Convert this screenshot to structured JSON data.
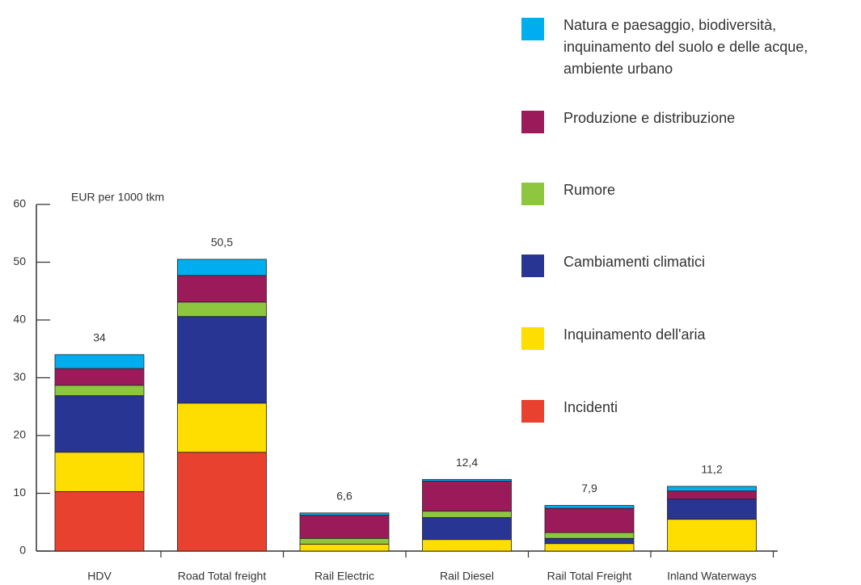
{
  "chart_data": {
    "type": "stacked_bar",
    "y_axis_label": "EUR per 1000 tkm",
    "categories": [
      "HDV",
      "Road Total freight",
      "Rail Electric",
      "Rail Diesel",
      "Rail Total Freight",
      "Inland Waterways"
    ],
    "series": [
      {
        "name": "Incidenti",
        "color": "#e8412f",
        "values": [
          10.3,
          17.1,
          0,
          0,
          0,
          0
        ]
      },
      {
        "name": "Inquinamento dell'aria",
        "color": "#fedd00",
        "values": [
          6.8,
          8.5,
          1.2,
          2.0,
          1.3,
          5.5
        ]
      },
      {
        "name": "Cambiamenti climatici",
        "color": "#283593",
        "values": [
          9.8,
          15.0,
          0,
          3.8,
          0.9,
          3.5
        ]
      },
      {
        "name": "Rumore",
        "color": "#8dc63f",
        "values": [
          1.8,
          2.5,
          1.0,
          1.1,
          1.0,
          0
        ]
      },
      {
        "name": "Produzione e distribuzione",
        "color": "#9b1b5a",
        "values": [
          2.9,
          4.6,
          4.0,
          5.2,
          4.2,
          1.4
        ]
      },
      {
        "name": "Natura e paesaggio, biodiversità, inquinamento del suolo e delle acque, ambiente urbano",
        "color": "#00aeef",
        "values": [
          2.4,
          2.8,
          0.4,
          0.3,
          0.5,
          0.8
        ]
      }
    ],
    "totals": {
      "values": [
        34,
        50.5,
        6.6,
        12.4,
        7.9,
        11.2
      ],
      "value_labels": [
        "34",
        "50,5",
        "6,6",
        "12,4",
        "7,9",
        "11,2"
      ]
    },
    "ylim": [
      0,
      60
    ],
    "yticks": [
      0,
      10,
      20,
      30,
      40,
      50,
      60
    ],
    "grid": false,
    "legend": "right"
  }
}
